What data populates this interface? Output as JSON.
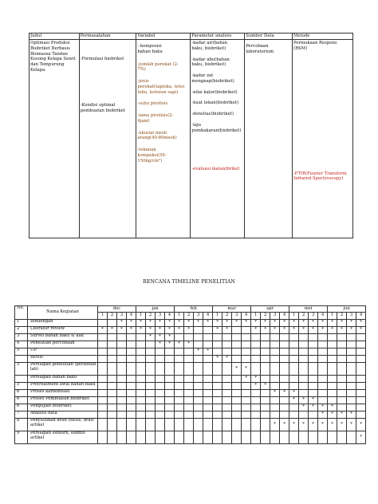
{
  "research_table": {
    "headers": [
      "Judul",
      "Permasalahan",
      "Variabel",
      "Parameter analisis",
      "Sumber Data",
      "Metode"
    ],
    "judul": [
      "Optimasi Produksi",
      "Biobriket Berbasis",
      "Biomassa Tandan",
      "Kosong Kelapa Sawit",
      "dan Tempurung",
      "Kelapa"
    ],
    "permasalahan": [
      {
        "text": "-Formulasi biobriket",
        "gap": 0
      },
      {
        "text": "-Kondisi optimal",
        "gap": 0
      },
      {
        "text": "pembuatan biobriket",
        "gap": 0
      }
    ],
    "variabel": [
      {
        "text": "- komposisi bahan baku",
        "color": "default"
      },
      {
        "text": "-jumlah perekat (2-7%)",
        "color": "brown"
      },
      {
        "text": "-jenis perekat(tapioka, tetes tebu, kotoran sapi)",
        "color": "brown"
      },
      {
        "text": "-suhu pirolisis",
        "color": "brown"
      },
      {
        "text": "-lama pirolisis(2-4jam)",
        "color": "brown"
      },
      {
        "text": "-ukuran mesh arang(40-80mesh)",
        "color": "brown"
      },
      {
        "text": "-tekanan kompaksi(50-150kg/cm²)",
        "color": "brown"
      }
    ],
    "parameter": [
      {
        "text": "-kadar air(bahan baku, biobriket)",
        "color": "default"
      },
      {
        "text": "-kadar abu(bahan baku, biobriket)",
        "color": "default"
      },
      {
        "text": "-kadar zat mengnap(biobriket)",
        "color": "default"
      },
      {
        "text": "-nilai kalor(biobriket)",
        "color": "default"
      },
      {
        "text": "-kuat tekan(biobriket)",
        "color": "default"
      },
      {
        "text": "-densitas(biobriket)",
        "color": "default"
      },
      {
        "text": "-laju pembakaran(biobriket)",
        "color": "default"
      },
      {
        "text": "-evaluasi ikatan/briket",
        "color": "red"
      }
    ],
    "sumber_data": [
      "Percobaan",
      "laboratorium"
    ],
    "metode": [
      {
        "text": "Permukaan Respons (RSM)",
        "color": "default"
      },
      {
        "text": "-FTIR(Fourier Transform Infrared Spectroscopy)",
        "color": "red"
      }
    ]
  },
  "timeline": {
    "title": "RENCANA TIMELINE PENELITIAN",
    "header_no": "No.",
    "header_activity": "Nama Kegiatan",
    "months": [
      "dec",
      "jan",
      "feb",
      "mar",
      "apr",
      "mei",
      "jun"
    ],
    "weeks": [
      "1",
      "2",
      "3",
      "4"
    ],
    "star_symbol": "*",
    "rows": [
      {
        "no": "1",
        "activity": "Bimbingan",
        "marks": [
          3,
          4,
          5,
          6,
          7,
          8,
          9,
          10,
          11,
          12,
          13,
          14,
          15,
          16,
          17,
          18,
          19,
          20,
          21,
          22,
          23,
          24,
          25,
          26,
          27,
          28
        ]
      },
      {
        "no": "2",
        "activity": "Literatur review",
        "marks": [
          1,
          2,
          3,
          4,
          5,
          6,
          7,
          8,
          9,
          10,
          13,
          14,
          17,
          18,
          19,
          20,
          21,
          22,
          23,
          24,
          25,
          26,
          27,
          28
        ]
      },
      {
        "no": "3",
        "activity": "Survei bahan baku & alat",
        "marks": [
          6,
          7,
          8
        ]
      },
      {
        "no": "4",
        "activity": "Penelitian percobaan",
        "marks": [
          7,
          8,
          9,
          10
        ]
      },
      {
        "no": "5",
        "activity": "UP",
        "marks": [
          11,
          12
        ]
      },
      {
        "no": "",
        "activity": "Revisi",
        "marks": [
          13,
          14
        ]
      },
      {
        "no": "5",
        "activity": "Persiapan penelitian (perizinan lab)",
        "marks": [
          15,
          16
        ]
      },
      {
        "no": "",
        "activity": "Persiapan bahan baku",
        "marks": [
          16,
          17
        ]
      },
      {
        "no": "5",
        "activity": "Pretreatment awal bahan baku",
        "marks": [
          17,
          18
        ]
      },
      {
        "no": "6",
        "activity": "Proses karbonisasi",
        "marks": [
          19,
          20,
          21
        ]
      },
      {
        "no": "6",
        "activity": "Proses Pembuatan biobriket",
        "marks": [
          21,
          22,
          23
        ]
      },
      {
        "no": "6",
        "activity": "Pengujian biobriket",
        "marks": [
          22,
          23,
          24,
          25
        ]
      },
      {
        "no": "7",
        "activity": "Analisis data",
        "marks": [
          24,
          25,
          26,
          27
        ]
      },
      {
        "no": "8",
        "activity": "Penyusunan draft thesis, draft artikel",
        "marks": [
          19,
          20,
          21,
          22,
          23,
          24,
          25,
          26,
          27,
          28
        ]
      },
      {
        "no": "9",
        "activity": "Persiapan sidhorn, submit artikel",
        "marks": [
          28
        ]
      }
    ]
  }
}
